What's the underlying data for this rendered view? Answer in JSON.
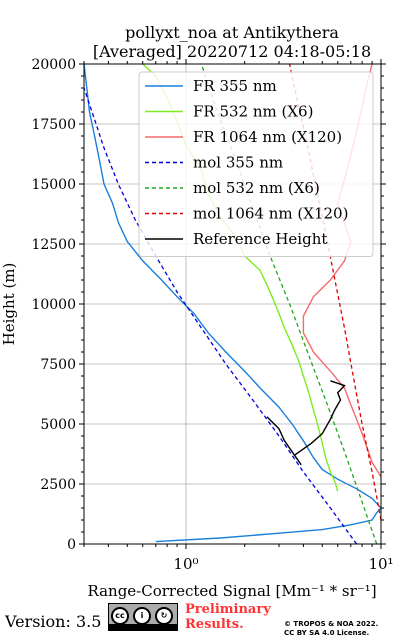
{
  "chart_data": {
    "type": "line",
    "title_line1": "pollyxt_noa at Antikythera",
    "title_line2": "[Averaged] 20220712 04:18-05:18",
    "xlabel": "Range-Corrected Signal [Mm⁻¹ * sr⁻¹]",
    "ylabel": "Height (m)",
    "xscale": "log",
    "xlim": [
      0.3,
      10
    ],
    "ylim": [
      0,
      20000
    ],
    "yticks": [
      0,
      2500,
      5000,
      7500,
      10000,
      12500,
      15000,
      17500,
      20000
    ],
    "ytick_labels": [
      "0",
      "2500",
      "5000",
      "7500",
      "10000",
      "12500",
      "15000",
      "17500",
      "20000"
    ],
    "xtick_labels": [
      "10⁰",
      "10¹"
    ],
    "grid": true,
    "legend_position": "top-right",
    "series": [
      {
        "name": "FR 355 nm",
        "color": "#1a7fdb",
        "style": "solid",
        "points": [
          [
            0.7,
            100
          ],
          [
            1.5,
            250
          ],
          [
            3.0,
            450
          ],
          [
            5.0,
            600
          ],
          [
            7.0,
            800
          ],
          [
            9.0,
            1000
          ],
          [
            9.5,
            1300
          ],
          [
            10,
            1500
          ],
          [
            9.0,
            1900
          ],
          [
            7.5,
            2300
          ],
          [
            6.0,
            2700
          ],
          [
            5.0,
            3100
          ],
          [
            4.5,
            3600
          ],
          [
            4.0,
            4300
          ],
          [
            3.5,
            5000
          ],
          [
            3.0,
            5700
          ],
          [
            2.4,
            6500
          ],
          [
            2.0,
            7200
          ],
          [
            1.6,
            8000
          ],
          [
            1.3,
            8800
          ],
          [
            1.1,
            9600
          ],
          [
            0.9,
            10300
          ],
          [
            0.75,
            11000
          ],
          [
            0.6,
            11800
          ],
          [
            0.5,
            12600
          ],
          [
            0.45,
            13400
          ],
          [
            0.42,
            14200
          ],
          [
            0.38,
            15000
          ],
          [
            0.36,
            16000
          ],
          [
            0.34,
            17000
          ],
          [
            0.32,
            18000
          ],
          [
            0.31,
            19000
          ],
          [
            0.3,
            20000
          ]
        ]
      },
      {
        "name": "FR 532 nm (X6)",
        "color": "#7cec20",
        "style": "solid",
        "points": [
          [
            6.0,
            2200
          ],
          [
            5.8,
            2600
          ],
          [
            5.5,
            3000
          ],
          [
            5.2,
            3600
          ],
          [
            5.0,
            4200
          ],
          [
            4.8,
            4800
          ],
          [
            4.5,
            5600
          ],
          [
            4.3,
            6200
          ],
          [
            4.0,
            7000
          ],
          [
            3.8,
            7600
          ],
          [
            3.5,
            8300
          ],
          [
            3.2,
            9000
          ],
          [
            3.0,
            9600
          ],
          [
            2.8,
            10200
          ],
          [
            2.6,
            10800
          ],
          [
            2.4,
            11400
          ],
          [
            2.0,
            12000
          ],
          [
            1.8,
            12800
          ],
          [
            1.5,
            13600
          ],
          [
            1.3,
            14600
          ],
          [
            1.2,
            15600
          ],
          [
            1.0,
            16600
          ],
          [
            0.9,
            17600
          ],
          [
            0.8,
            18600
          ],
          [
            0.7,
            19500
          ],
          [
            0.6,
            20000
          ]
        ]
      },
      {
        "name": "FR 1064 nm (X120)",
        "color": "#f56a6a",
        "style": "solid",
        "points": [
          [
            10,
            2800
          ],
          [
            9.0,
            3400
          ],
          [
            8.5,
            4000
          ],
          [
            8.0,
            4600
          ],
          [
            7.5,
            5200
          ],
          [
            7.0,
            5800
          ],
          [
            6.5,
            6500
          ],
          [
            5.5,
            7200
          ],
          [
            4.5,
            8000
          ],
          [
            4.0,
            8800
          ],
          [
            4.0,
            9500
          ],
          [
            4.5,
            10300
          ],
          [
            5.5,
            11000
          ],
          [
            6.5,
            11800
          ],
          [
            7.0,
            12600
          ],
          [
            6.5,
            13400
          ],
          [
            6.0,
            14200
          ],
          [
            6.5,
            15200
          ],
          [
            7.0,
            16200
          ],
          [
            7.5,
            17200
          ],
          [
            8.0,
            18200
          ],
          [
            8.5,
            19200
          ],
          [
            9.0,
            20000
          ]
        ]
      },
      {
        "name": "mol 355 nm",
        "color": "#0000dd",
        "style": "dashed",
        "points": [
          [
            7.5,
            0
          ],
          [
            5.5,
            1500
          ],
          [
            4.0,
            3000
          ],
          [
            3.0,
            4500
          ],
          [
            2.2,
            6000
          ],
          [
            1.6,
            7500
          ],
          [
            1.2,
            9000
          ],
          [
            0.9,
            10500
          ],
          [
            0.7,
            12000
          ],
          [
            0.55,
            13500
          ],
          [
            0.45,
            15000
          ],
          [
            0.38,
            16500
          ],
          [
            0.33,
            18000
          ],
          [
            0.3,
            19000
          ]
        ]
      },
      {
        "name": "mol 532 nm (X6)",
        "color": "#1ea81e",
        "style": "dashed",
        "points": [
          [
            9.5,
            0
          ],
          [
            7.8,
            2000
          ],
          [
            6.4,
            4000
          ],
          [
            5.2,
            6000
          ],
          [
            4.2,
            8000
          ],
          [
            3.4,
            10000
          ],
          [
            2.7,
            12000
          ],
          [
            2.2,
            14000
          ],
          [
            1.8,
            16000
          ],
          [
            1.45,
            18000
          ],
          [
            1.2,
            20000
          ]
        ]
      },
      {
        "name": "mol 1064 nm (X120)",
        "color": "#e00000",
        "style": "dashed",
        "points": [
          [
            10,
            1000
          ],
          [
            9.0,
            3000
          ],
          [
            8.0,
            5000
          ],
          [
            7.2,
            7000
          ],
          [
            6.5,
            9000
          ],
          [
            5.8,
            11000
          ],
          [
            5.2,
            13000
          ],
          [
            4.6,
            15000
          ],
          [
            4.1,
            17000
          ],
          [
            3.6,
            19000
          ],
          [
            3.4,
            20000
          ]
        ]
      },
      {
        "name": "Reference Height",
        "color": "#000000",
        "style": "solid",
        "points": [
          [
            2.6,
            5300
          ],
          [
            3.0,
            4800
          ],
          [
            3.2,
            4300
          ],
          [
            3.6,
            3700
          ],
          [
            3.9,
            3300
          ],
          [
            3.6,
            3700
          ],
          [
            4.4,
            4200
          ],
          [
            5.0,
            4600
          ],
          [
            5.5,
            5200
          ],
          [
            5.8,
            5600
          ],
          [
            6.2,
            6000
          ],
          [
            6.0,
            6300
          ],
          [
            6.5,
            6600
          ],
          [
            5.5,
            6800
          ]
        ]
      }
    ]
  },
  "footer": {
    "version": "Version: 3.5",
    "license_badge": "cc-by-sa-badge",
    "prelim_line1": "Preliminary",
    "prelim_line2": "Results.",
    "copyright_line1": "© TROPOS & NOA 2022.",
    "copyright_line2": "CC BY SA 4.0 License."
  }
}
